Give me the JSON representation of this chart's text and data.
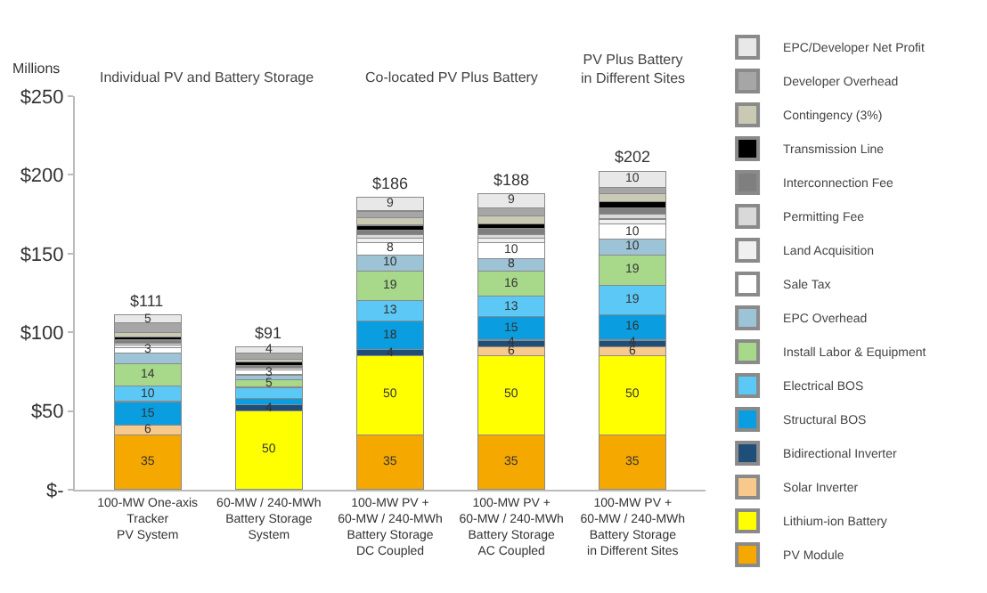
{
  "chart_data": {
    "type": "bar",
    "stacked": true,
    "ylabel": "Millions",
    "categories": [
      "100-MW One-axis\nTracker\nPV System",
      "60-MW / 240-MWh\nBattery Storage\nSystem",
      "100-MW PV +\n60-MW / 240-MWh\nBattery Storage\nDC Coupled",
      "100-MW PV +\n60-MW / 240-MWh\nBattery Storage\nAC Coupled",
      "100-MW PV +\n60-MW / 240-MWh\nBattery Storage\nin Different Sites"
    ],
    "series": [
      {
        "name": "PV Module",
        "color": "#f5a800",
        "values": [
          35,
          0,
          35,
          35,
          35
        ],
        "value_labels": [
          "35",
          null,
          "35",
          "35",
          "35"
        ]
      },
      {
        "name": "Lithium-ion Battery",
        "color": "#ffff00",
        "values": [
          0,
          50,
          50,
          50,
          50
        ],
        "value_labels": [
          null,
          "50",
          "50",
          "50",
          "50"
        ]
      },
      {
        "name": "Solar Inverter",
        "color": "#f7c98c",
        "values": [
          6,
          0,
          0,
          6,
          6
        ],
        "value_labels": [
          "6",
          null,
          null,
          "6",
          "6"
        ]
      },
      {
        "name": "Bidirectional Inverter",
        "color": "#1f4e79",
        "values": [
          0,
          4,
          4,
          4,
          4
        ],
        "value_labels": [
          null,
          "4",
          "4",
          "4",
          "4"
        ]
      },
      {
        "name": "Structural BOS",
        "color": "#0a9ee0",
        "values": [
          15,
          4,
          18,
          15,
          16
        ],
        "value_labels": [
          "15",
          null,
          "18",
          "15",
          "16"
        ]
      },
      {
        "name": "Electrical BOS",
        "color": "#5bc8f5",
        "values": [
          10,
          7,
          13,
          13,
          19
        ],
        "value_labels": [
          "10",
          null,
          "13",
          "13",
          "19"
        ]
      },
      {
        "name": "Install Labor & Equipment",
        "color": "#a8d88a",
        "values": [
          14,
          5,
          19,
          16,
          19
        ],
        "value_labels": [
          "14",
          "5",
          "19",
          "16",
          "19"
        ]
      },
      {
        "name": "EPC Overhead",
        "color": "#9dc3d6",
        "values": [
          7,
          3,
          10,
          8,
          10
        ],
        "value_labels": [
          null,
          null,
          "10",
          "8",
          "10"
        ]
      },
      {
        "name": "Sale Tax",
        "color": "#ffffff",
        "values": [
          3,
          3,
          8,
          10,
          10
        ],
        "value_labels": [
          "3",
          "3",
          "8",
          "10",
          "10"
        ]
      },
      {
        "name": "Land Acquisition",
        "color": "#f0f0f0",
        "values": [
          2,
          1,
          3,
          3,
          3
        ]
      },
      {
        "name": "Permitting Fee",
        "color": "#d9d9d9",
        "values": [
          1,
          1,
          2,
          2,
          3
        ]
      },
      {
        "name": "Interconnection Fee",
        "color": "#7f7f7f",
        "values": [
          2,
          1,
          3,
          4,
          4
        ]
      },
      {
        "name": "Transmission Line",
        "color": "#000000",
        "values": [
          2,
          2,
          3,
          3,
          4
        ]
      },
      {
        "name": "Contingency (3%)",
        "color": "#c9c9b4",
        "values": [
          3,
          2,
          5,
          5,
          5
        ]
      },
      {
        "name": "Developer Overhead",
        "color": "#a6a6a6",
        "values": [
          6,
          4,
          4,
          5,
          4
        ]
      },
      {
        "name": "EPC/Developer Net Profit",
        "color": "#e8e8e8",
        "values": [
          5,
          4,
          9,
          9,
          10
        ],
        "value_labels": [
          "5",
          "4",
          "9",
          "9",
          "10"
        ]
      }
    ],
    "totals": [
      "$111",
      "$91",
      "$186",
      "$188",
      "$202"
    ],
    "ylim": [
      0,
      250
    ],
    "yticks": [
      {
        "value": 0,
        "label": "$-"
      },
      {
        "value": 50,
        "label": "$50"
      },
      {
        "value": 100,
        "label": "$100"
      },
      {
        "value": 150,
        "label": "$150"
      },
      {
        "value": 200,
        "label": "$200"
      },
      {
        "value": 250,
        "label": "$250"
      }
    ],
    "grid": false,
    "legend": "right",
    "annotations": [
      "Individual PV and Battery Storage",
      "Co-located PV Plus Battery",
      "PV Plus Battery\nin Different Sites"
    ]
  }
}
